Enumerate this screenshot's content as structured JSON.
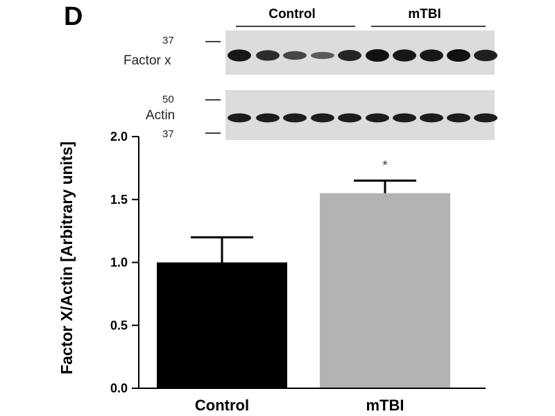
{
  "panel_letter": "D",
  "blot": {
    "group_labels": [
      "Control",
      "mTBI"
    ],
    "factor_x": {
      "label": "Factor x",
      "markers": [
        "37"
      ]
    },
    "actin": {
      "label": "Actin",
      "markers": [
        "50",
        "37"
      ]
    }
  },
  "chart_data": {
    "type": "bar",
    "categories": [
      "Control",
      "mTBI"
    ],
    "values": [
      1.0,
      1.55
    ],
    "errors": [
      0.2,
      0.1
    ],
    "colors": [
      "#000000",
      "#b3b3b6"
    ],
    "ylabel": "Factor X/Actin [Arbitrary units]",
    "ylim": [
      0,
      2.0
    ],
    "yticks": [
      "0.0",
      "0.5",
      "1.0",
      "1.5",
      "2.0"
    ],
    "significance": [
      {
        "category": "mTBI",
        "label": "*"
      }
    ]
  }
}
